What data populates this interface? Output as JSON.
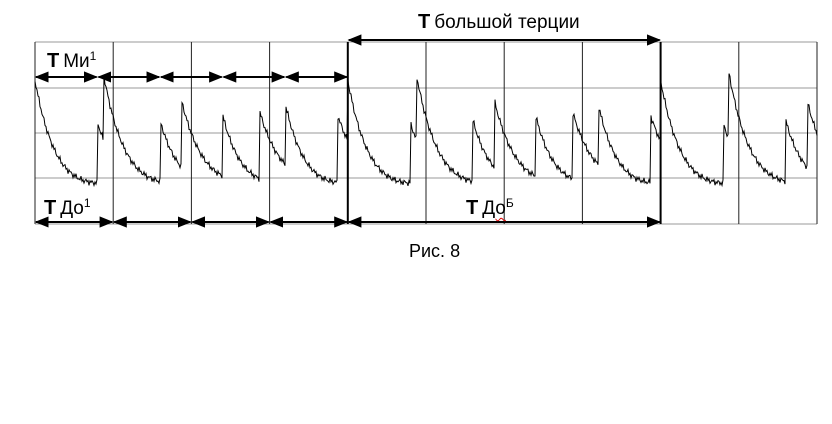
{
  "labels": {
    "major_third": {
      "symbol": "T",
      "name": "большой терции"
    },
    "mi1": {
      "symbol": "T",
      "name": "Ми",
      "sup": "1"
    },
    "do1": {
      "symbol": "T",
      "name": "До",
      "sup": "1"
    },
    "doB": {
      "symbol": "T",
      "name": "До",
      "sup": "Б"
    }
  },
  "caption": "Рис. 8"
}
